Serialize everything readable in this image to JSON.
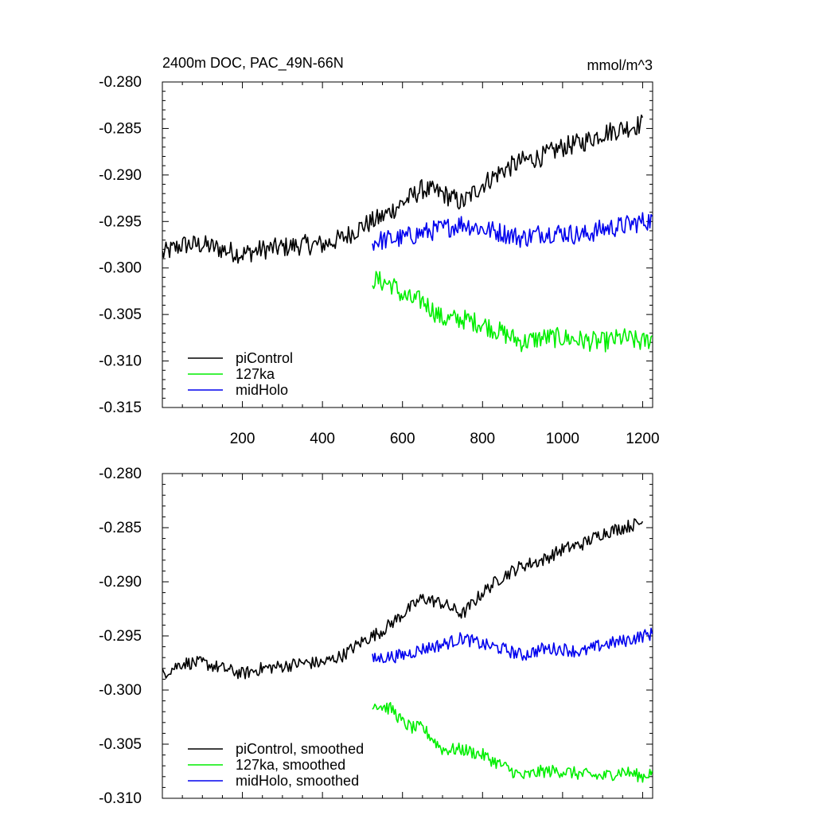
{
  "chart_data": [
    {
      "type": "line",
      "title": "2400m DOC, PAC_49N-66N",
      "units": "mmol/m^3",
      "xlim": [
        0,
        1225
      ],
      "ylim": [
        -0.315,
        -0.28
      ],
      "xticks": [
        200,
        400,
        600,
        800,
        1000,
        1200
      ],
      "xtick_labels": [
        "200",
        "400",
        "600",
        "800",
        "1000",
        "1200"
      ],
      "yticks": [
        -0.28,
        -0.285,
        -0.29,
        -0.295,
        -0.3,
        -0.305,
        -0.31,
        -0.315
      ],
      "ytick_labels": [
        "-0.280",
        "-0.285",
        "-0.290",
        "-0.295",
        "-0.300",
        "-0.305",
        "-0.310",
        "-0.315"
      ],
      "legend_position": "bottom-left",
      "series": [
        {
          "name": "piControl",
          "color": "#000000",
          "x": [
            0,
            50,
            100,
            150,
            200,
            250,
            300,
            350,
            400,
            450,
            500,
            550,
            600,
            650,
            700,
            750,
            800,
            850,
            900,
            950,
            1000,
            1050,
            1100,
            1150,
            1200
          ],
          "y": [
            -0.2985,
            -0.2975,
            -0.2975,
            -0.298,
            -0.2985,
            -0.298,
            -0.2978,
            -0.2975,
            -0.2975,
            -0.2968,
            -0.2955,
            -0.2945,
            -0.293,
            -0.2915,
            -0.292,
            -0.293,
            -0.291,
            -0.2895,
            -0.2885,
            -0.288,
            -0.287,
            -0.2865,
            -0.2855,
            -0.285,
            -0.2845
          ]
        },
        {
          "name": "127ka",
          "color": "#00ee00",
          "x": [
            525,
            550,
            575,
            600,
            625,
            650,
            675,
            700,
            750,
            800,
            850,
            900,
            950,
            1000,
            1050,
            1100,
            1150,
            1200,
            1225
          ],
          "y": [
            -0.3012,
            -0.3015,
            -0.3018,
            -0.303,
            -0.3035,
            -0.3035,
            -0.3045,
            -0.3055,
            -0.3055,
            -0.306,
            -0.307,
            -0.308,
            -0.3075,
            -0.3075,
            -0.3078,
            -0.308,
            -0.3075,
            -0.308,
            -0.3075
          ]
        },
        {
          "name": "midHolo",
          "color": "#0000ee",
          "x": [
            525,
            550,
            600,
            650,
            700,
            750,
            800,
            850,
            900,
            950,
            1000,
            1050,
            1100,
            1150,
            1200,
            1225
          ],
          "y": [
            -0.2972,
            -0.297,
            -0.2968,
            -0.2962,
            -0.2958,
            -0.2952,
            -0.2958,
            -0.2962,
            -0.2968,
            -0.2962,
            -0.2962,
            -0.2965,
            -0.2958,
            -0.2955,
            -0.295,
            -0.2948
          ]
        }
      ]
    },
    {
      "type": "line",
      "xlim": [
        0,
        1225
      ],
      "ylim": [
        -0.31,
        -0.28
      ],
      "yticks": [
        -0.28,
        -0.285,
        -0.29,
        -0.295,
        -0.3,
        -0.305,
        -0.31
      ],
      "ytick_labels": [
        "-0.280",
        "-0.285",
        "-0.290",
        "-0.295",
        "-0.300",
        "-0.305",
        "-0.310"
      ],
      "legend_position": "bottom-left",
      "series": [
        {
          "name": "piControl, smoothed",
          "color": "#000000",
          "x": [
            0,
            50,
            100,
            150,
            200,
            250,
            300,
            350,
            400,
            450,
            500,
            550,
            600,
            650,
            700,
            750,
            800,
            850,
            900,
            950,
            1000,
            1050,
            1100,
            1150,
            1200
          ],
          "y": [
            -0.2985,
            -0.2975,
            -0.2975,
            -0.298,
            -0.2985,
            -0.298,
            -0.2978,
            -0.2975,
            -0.2975,
            -0.2968,
            -0.2955,
            -0.2945,
            -0.293,
            -0.2915,
            -0.292,
            -0.293,
            -0.291,
            -0.2895,
            -0.2885,
            -0.288,
            -0.287,
            -0.2865,
            -0.2855,
            -0.285,
            -0.2845
          ]
        },
        {
          "name": "127ka, smoothed",
          "color": "#00ee00",
          "x": [
            525,
            550,
            575,
            600,
            625,
            650,
            675,
            700,
            750,
            800,
            850,
            900,
            950,
            1000,
            1050,
            1100,
            1150,
            1200,
            1225
          ],
          "y": [
            -0.3012,
            -0.3015,
            -0.3018,
            -0.303,
            -0.3035,
            -0.3035,
            -0.3045,
            -0.3055,
            -0.3055,
            -0.306,
            -0.307,
            -0.308,
            -0.3075,
            -0.3075,
            -0.3078,
            -0.308,
            -0.3075,
            -0.308,
            -0.3075
          ]
        },
        {
          "name": "midHolo, smoothed",
          "color": "#0000ee",
          "x": [
            525,
            550,
            600,
            650,
            700,
            750,
            800,
            850,
            900,
            950,
            1000,
            1050,
            1100,
            1150,
            1200,
            1225
          ],
          "y": [
            -0.2972,
            -0.297,
            -0.2968,
            -0.2962,
            -0.2958,
            -0.2952,
            -0.2958,
            -0.2962,
            -0.2968,
            -0.2962,
            -0.2962,
            -0.2965,
            -0.2958,
            -0.2955,
            -0.295,
            -0.2948
          ]
        }
      ]
    }
  ]
}
